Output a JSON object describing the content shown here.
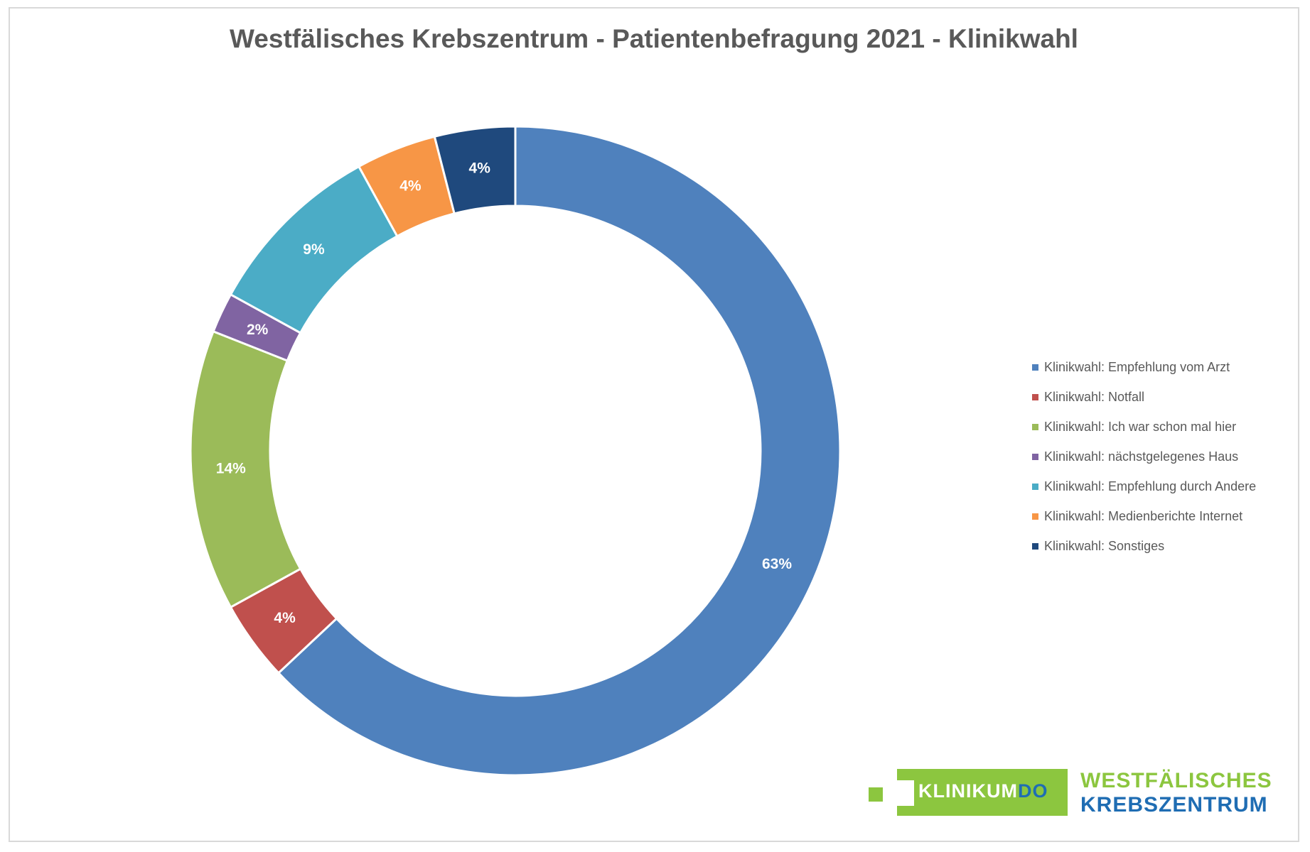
{
  "chart_data": {
    "type": "pie",
    "variant": "donut",
    "title": "Westfälisches Krebszentrum - Patientenbefragung 2021 - Klinikwahl",
    "legend_position": "right",
    "series": [
      {
        "name": "Klinikwahl: Empfehlung vom Arzt",
        "value": 63,
        "label": "63%",
        "color": "#4f81bd"
      },
      {
        "name": "Klinikwahl: Notfall",
        "value": 4,
        "label": "4%",
        "color": "#c0504d"
      },
      {
        "name": "Klinikwahl: Ich war schon mal hier",
        "value": 14,
        "label": "14%",
        "color": "#9bbb59"
      },
      {
        "name": "Klinikwahl: nächstgelegenes Haus",
        "value": 2,
        "label": "2%",
        "color": "#8064a2"
      },
      {
        "name": "Klinikwahl: Empfehlung durch Andere",
        "value": 9,
        "label": "9%",
        "color": "#4bacc6"
      },
      {
        "name": "Klinikwahl: Medienberichte Internet",
        "value": 4,
        "label": "4%",
        "color": "#f79646"
      },
      {
        "name": "Klinikwahl: Sonstiges",
        "value": 4,
        "label": "4%",
        "color": "#1f497d"
      }
    ]
  },
  "logo": {
    "box_text": "KLINIKUM",
    "box_text_accent": "DO",
    "line1": "WESTFÄLISCHES",
    "line2": "KREBSZENTRUM"
  }
}
